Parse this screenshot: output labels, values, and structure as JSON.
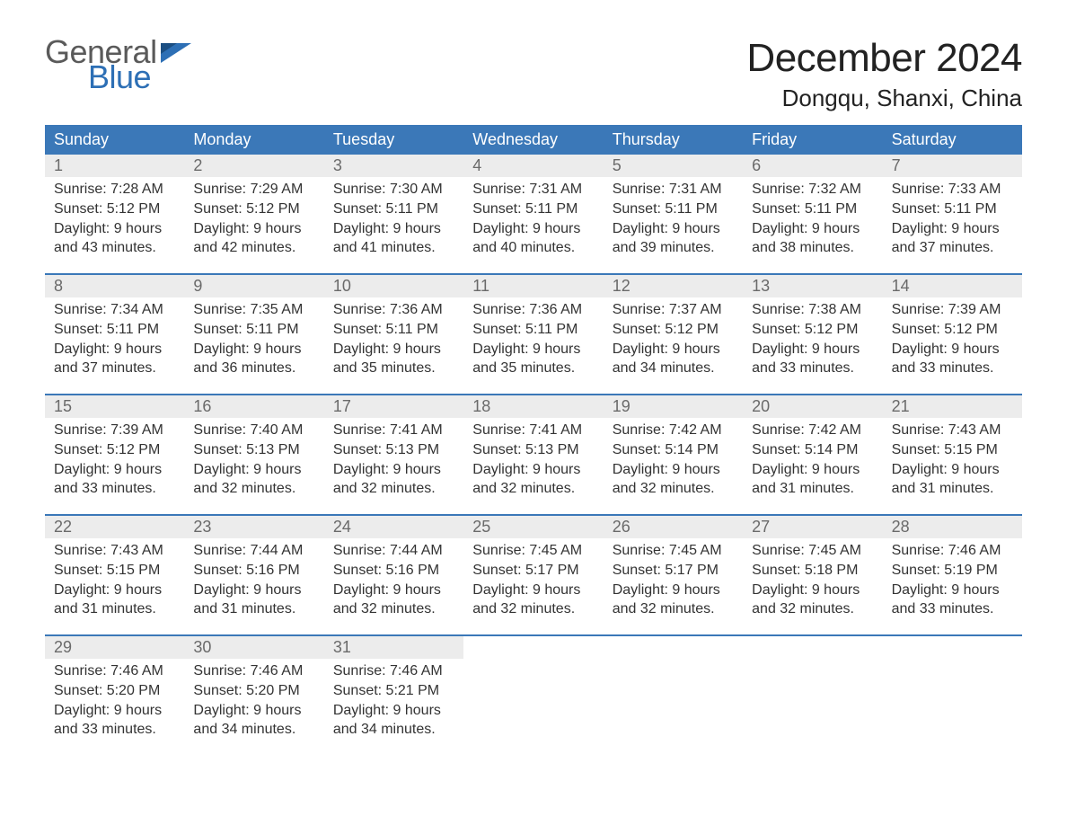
{
  "brand": {
    "word1": "General",
    "word2": "Blue",
    "flag_color": "#2d6fb5"
  },
  "title": "December 2024",
  "location": "Dongqu, Shanxi, China",
  "colors": {
    "header_bg": "#3b78b8",
    "header_text": "#ffffff",
    "date_bg": "#ececec",
    "date_text": "#6a6a6a",
    "body_text": "#333333",
    "week_border": "#3b78b8",
    "page_bg": "#ffffff"
  },
  "typography": {
    "title_fontsize": 44,
    "location_fontsize": 26,
    "header_fontsize": 18,
    "date_fontsize": 18,
    "detail_fontsize": 16
  },
  "layout": {
    "columns": 7,
    "start_day": "Sunday"
  },
  "day_names": [
    "Sunday",
    "Monday",
    "Tuesday",
    "Wednesday",
    "Thursday",
    "Friday",
    "Saturday"
  ],
  "labels": {
    "sunrise_prefix": "Sunrise: ",
    "sunset_prefix": "Sunset: ",
    "daylight_prefix": "Daylight: "
  },
  "weeks": [
    [
      {
        "date": "1",
        "sunrise": "7:28 AM",
        "sunset": "5:12 PM",
        "daylight": "9 hours and 43 minutes."
      },
      {
        "date": "2",
        "sunrise": "7:29 AM",
        "sunset": "5:12 PM",
        "daylight": "9 hours and 42 minutes."
      },
      {
        "date": "3",
        "sunrise": "7:30 AM",
        "sunset": "5:11 PM",
        "daylight": "9 hours and 41 minutes."
      },
      {
        "date": "4",
        "sunrise": "7:31 AM",
        "sunset": "5:11 PM",
        "daylight": "9 hours and 40 minutes."
      },
      {
        "date": "5",
        "sunrise": "7:31 AM",
        "sunset": "5:11 PM",
        "daylight": "9 hours and 39 minutes."
      },
      {
        "date": "6",
        "sunrise": "7:32 AM",
        "sunset": "5:11 PM",
        "daylight": "9 hours and 38 minutes."
      },
      {
        "date": "7",
        "sunrise": "7:33 AM",
        "sunset": "5:11 PM",
        "daylight": "9 hours and 37 minutes."
      }
    ],
    [
      {
        "date": "8",
        "sunrise": "7:34 AM",
        "sunset": "5:11 PM",
        "daylight": "9 hours and 37 minutes."
      },
      {
        "date": "9",
        "sunrise": "7:35 AM",
        "sunset": "5:11 PM",
        "daylight": "9 hours and 36 minutes."
      },
      {
        "date": "10",
        "sunrise": "7:36 AM",
        "sunset": "5:11 PM",
        "daylight": "9 hours and 35 minutes."
      },
      {
        "date": "11",
        "sunrise": "7:36 AM",
        "sunset": "5:11 PM",
        "daylight": "9 hours and 35 minutes."
      },
      {
        "date": "12",
        "sunrise": "7:37 AM",
        "sunset": "5:12 PM",
        "daylight": "9 hours and 34 minutes."
      },
      {
        "date": "13",
        "sunrise": "7:38 AM",
        "sunset": "5:12 PM",
        "daylight": "9 hours and 33 minutes."
      },
      {
        "date": "14",
        "sunrise": "7:39 AM",
        "sunset": "5:12 PM",
        "daylight": "9 hours and 33 minutes."
      }
    ],
    [
      {
        "date": "15",
        "sunrise": "7:39 AM",
        "sunset": "5:12 PM",
        "daylight": "9 hours and 33 minutes."
      },
      {
        "date": "16",
        "sunrise": "7:40 AM",
        "sunset": "5:13 PM",
        "daylight": "9 hours and 32 minutes."
      },
      {
        "date": "17",
        "sunrise": "7:41 AM",
        "sunset": "5:13 PM",
        "daylight": "9 hours and 32 minutes."
      },
      {
        "date": "18",
        "sunrise": "7:41 AM",
        "sunset": "5:13 PM",
        "daylight": "9 hours and 32 minutes."
      },
      {
        "date": "19",
        "sunrise": "7:42 AM",
        "sunset": "5:14 PM",
        "daylight": "9 hours and 32 minutes."
      },
      {
        "date": "20",
        "sunrise": "7:42 AM",
        "sunset": "5:14 PM",
        "daylight": "9 hours and 31 minutes."
      },
      {
        "date": "21",
        "sunrise": "7:43 AM",
        "sunset": "5:15 PM",
        "daylight": "9 hours and 31 minutes."
      }
    ],
    [
      {
        "date": "22",
        "sunrise": "7:43 AM",
        "sunset": "5:15 PM",
        "daylight": "9 hours and 31 minutes."
      },
      {
        "date": "23",
        "sunrise": "7:44 AM",
        "sunset": "5:16 PM",
        "daylight": "9 hours and 31 minutes."
      },
      {
        "date": "24",
        "sunrise": "7:44 AM",
        "sunset": "5:16 PM",
        "daylight": "9 hours and 32 minutes."
      },
      {
        "date": "25",
        "sunrise": "7:45 AM",
        "sunset": "5:17 PM",
        "daylight": "9 hours and 32 minutes."
      },
      {
        "date": "26",
        "sunrise": "7:45 AM",
        "sunset": "5:17 PM",
        "daylight": "9 hours and 32 minutes."
      },
      {
        "date": "27",
        "sunrise": "7:45 AM",
        "sunset": "5:18 PM",
        "daylight": "9 hours and 32 minutes."
      },
      {
        "date": "28",
        "sunrise": "7:46 AM",
        "sunset": "5:19 PM",
        "daylight": "9 hours and 33 minutes."
      }
    ],
    [
      {
        "date": "29",
        "sunrise": "7:46 AM",
        "sunset": "5:20 PM",
        "daylight": "9 hours and 33 minutes."
      },
      {
        "date": "30",
        "sunrise": "7:46 AM",
        "sunset": "5:20 PM",
        "daylight": "9 hours and 34 minutes."
      },
      {
        "date": "31",
        "sunrise": "7:46 AM",
        "sunset": "5:21 PM",
        "daylight": "9 hours and 34 minutes."
      },
      null,
      null,
      null,
      null
    ]
  ]
}
